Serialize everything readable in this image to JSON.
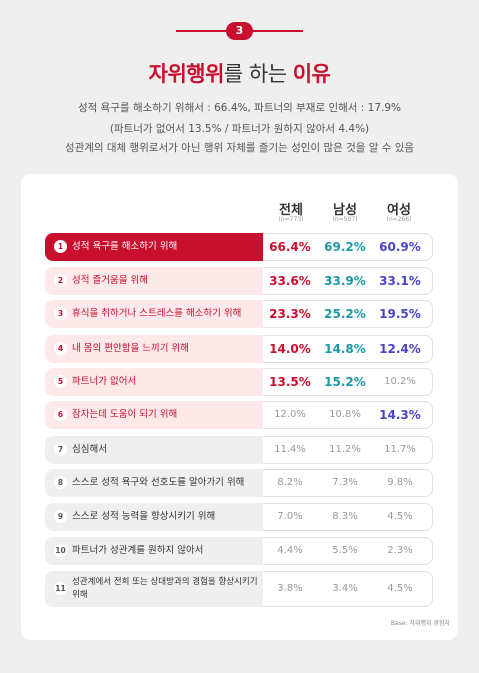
{
  "badge": "3",
  "title": {
    "a": "자위행위",
    "b": "를 하는 ",
    "c": "이유"
  },
  "subtitle": [
    "성적 욕구를 해소하기 위해서 : 66.4%, 파트너의 부재로 인해서 : 17.9%",
    "(파트너가 없어서 13.5% / 파트너가 원하지 않아서 4.4%)",
    "성관계의 대체 행위로서가 아닌 행위 자체를 즐기는 성인이 많은 것을 알 수 있음"
  ],
  "columns": [
    {
      "label": "전체",
      "n": "(n=773)"
    },
    {
      "label": "남성",
      "n": "(n=507)"
    },
    {
      "label": "여성",
      "n": "(n=266)"
    }
  ],
  "chart_data": {
    "type": "table",
    "unit": "%",
    "series_names": [
      "전체",
      "남성",
      "여성"
    ],
    "rows": [
      {
        "rank": "1",
        "label": "성적 욕구를 해소하기 위해",
        "values": [
          "66.4%",
          "69.2%",
          "60.9%"
        ]
      },
      {
        "rank": "2",
        "label": "성적 즐거움을 위해",
        "values": [
          "33.6%",
          "33.9%",
          "33.1%"
        ]
      },
      {
        "rank": "3",
        "label": "휴식을 취하거나 스트레스를 해소하기 위해",
        "values": [
          "23.3%",
          "25.2%",
          "19.5%"
        ]
      },
      {
        "rank": "4",
        "label": "내 몸의 편안함을 느끼기 위해",
        "values": [
          "14.0%",
          "14.8%",
          "12.4%"
        ]
      },
      {
        "rank": "5",
        "label": "파트너가 없어서",
        "values": [
          "13.5%",
          "15.2%",
          "10.2%"
        ]
      },
      {
        "rank": "6",
        "label": "잠자는데 도움이 되기 위해",
        "values": [
          "12.0%",
          "10.8%",
          "14.3%"
        ]
      },
      {
        "rank": "7",
        "label": "심심해서",
        "values": [
          "11.4%",
          "11.2%",
          "11.7%"
        ]
      },
      {
        "rank": "8",
        "label": "스스로 성적 욕구와 선호도를 알아가기 위해",
        "values": [
          "8.2%",
          "7.3%",
          "9.8%"
        ]
      },
      {
        "rank": "9",
        "label": "스스로 성적 능력을 향상시키기 위해",
        "values": [
          "7.0%",
          "8.3%",
          "4.5%"
        ]
      },
      {
        "rank": "10",
        "label": "파트너가 성관계를 원하지 않아서",
        "values": [
          "4.4%",
          "5.5%",
          "2.3%"
        ]
      },
      {
        "rank": "11",
        "label": "성관계에서 전희 또는 상대방과의 경험을 향상시키기 위해",
        "values": [
          "3.8%",
          "3.4%",
          "4.5%"
        ]
      }
    ]
  },
  "base_note": "Base: 자위행위 경험자",
  "colors": {
    "accent": "#c8102e",
    "male": "#1a9aa6",
    "female": "#4a44c4",
    "muted": "#999999"
  }
}
